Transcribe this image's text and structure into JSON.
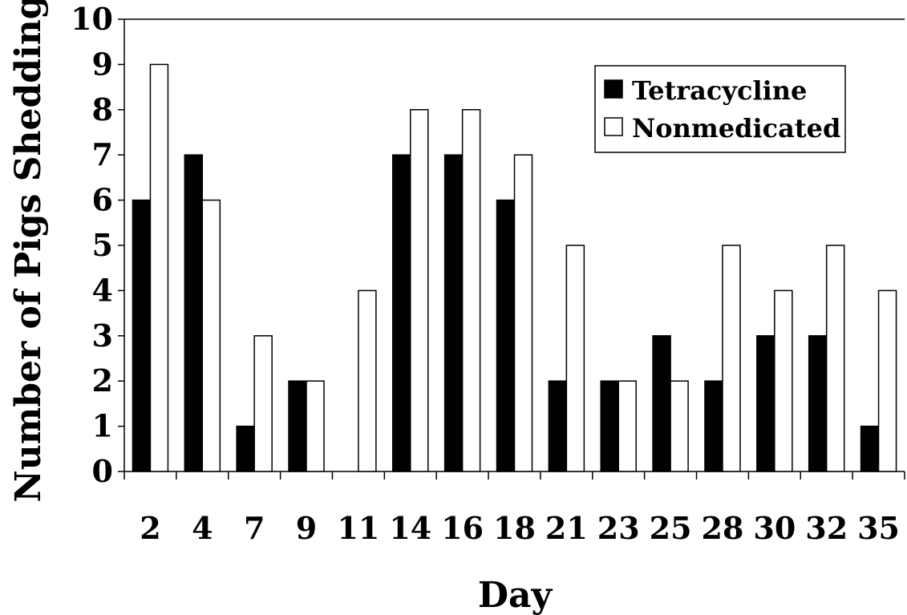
{
  "chart_data": {
    "type": "bar",
    "title": "",
    "xlabel": "Day",
    "ylabel": "Number of Pigs Shedding",
    "ylim": [
      0,
      10
    ],
    "yticks": [
      0,
      1,
      2,
      3,
      4,
      5,
      6,
      7,
      8,
      9,
      10
    ],
    "categories": [
      "2",
      "4",
      "7",
      "9",
      "11",
      "14",
      "16",
      "18",
      "21",
      "23",
      "25",
      "28",
      "30",
      "32",
      "35"
    ],
    "series": [
      {
        "name": "Tetracycline",
        "color": "#000000",
        "values": [
          6,
          7,
          1,
          2,
          0,
          7,
          7,
          6,
          2,
          2,
          3,
          2,
          3,
          3,
          1
        ]
      },
      {
        "name": "Nonmedicated",
        "color": "#ffffff",
        "values": [
          9,
          6,
          3,
          2,
          4,
          8,
          8,
          7,
          5,
          2,
          2,
          5,
          4,
          5,
          4
        ]
      }
    ],
    "legend": "top-right",
    "grid": false
  }
}
